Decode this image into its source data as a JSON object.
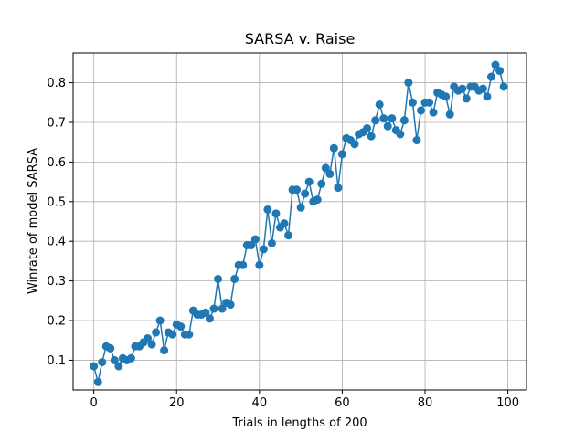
{
  "chart_data": {
    "type": "line",
    "title": "SARSA v. Raise",
    "xlabel": "Trials in lengths of 200",
    "ylabel": "Winrate of model SARSA",
    "xlim": [
      -5,
      104.5
    ],
    "ylim": [
      0.025,
      0.875
    ],
    "xticks": [
      0,
      20,
      40,
      60,
      80,
      100
    ],
    "yticks": [
      0.1,
      0.2,
      0.3,
      0.4,
      0.5,
      0.6,
      0.7,
      0.8
    ],
    "xtick_labels": [
      "0",
      "20",
      "40",
      "60",
      "80",
      "100"
    ],
    "ytick_labels": [
      "0.1",
      "0.2",
      "0.3",
      "0.4",
      "0.5",
      "0.6",
      "0.7",
      "0.8"
    ],
    "grid": true,
    "marker": "circle",
    "color": "#1f77b4",
    "series": [
      {
        "x": [
          0,
          1,
          2,
          3,
          4,
          5,
          6,
          7,
          8,
          9,
          10,
          11,
          12,
          13,
          14,
          15,
          16,
          17,
          18,
          19,
          20,
          21,
          22,
          23,
          24,
          25,
          26,
          27,
          28,
          29,
          30,
          31,
          32,
          33,
          34,
          35,
          36,
          37,
          38,
          39,
          40,
          41,
          42,
          43,
          44,
          45,
          46,
          47,
          48,
          49,
          50,
          51,
          52,
          53,
          54,
          55,
          56,
          57,
          58,
          59,
          60,
          61,
          62,
          63,
          64,
          65,
          66,
          67,
          68,
          69,
          70,
          71,
          72,
          73,
          74,
          75,
          76,
          77,
          78,
          79,
          80,
          81,
          82,
          83,
          84,
          85,
          86,
          87,
          88,
          89,
          90,
          91,
          92,
          93,
          94,
          95,
          96,
          97,
          98,
          99
        ],
        "values": [
          0.085,
          0.045,
          0.095,
          0.135,
          0.13,
          0.1,
          0.085,
          0.105,
          0.1,
          0.105,
          0.135,
          0.135,
          0.145,
          0.155,
          0.14,
          0.17,
          0.2,
          0.125,
          0.17,
          0.165,
          0.19,
          0.185,
          0.165,
          0.165,
          0.225,
          0.215,
          0.215,
          0.22,
          0.205,
          0.23,
          0.305,
          0.23,
          0.245,
          0.24,
          0.305,
          0.34,
          0.34,
          0.39,
          0.39,
          0.405,
          0.34,
          0.38,
          0.48,
          0.395,
          0.47,
          0.435,
          0.445,
          0.415,
          0.53,
          0.53,
          0.485,
          0.52,
          0.55,
          0.5,
          0.505,
          0.545,
          0.585,
          0.57,
          0.635,
          0.535,
          0.62,
          0.66,
          0.655,
          0.645,
          0.67,
          0.675,
          0.685,
          0.665,
          0.705,
          0.745,
          0.71,
          0.69,
          0.71,
          0.68,
          0.67,
          0.705,
          0.8,
          0.75,
          0.655,
          0.73,
          0.75,
          0.75,
          0.725,
          0.775,
          0.77,
          0.765,
          0.72,
          0.79,
          0.78,
          0.785,
          0.76,
          0.79,
          0.79,
          0.78,
          0.785,
          0.765,
          0.815,
          0.845,
          0.83,
          0.79
        ]
      }
    ]
  }
}
